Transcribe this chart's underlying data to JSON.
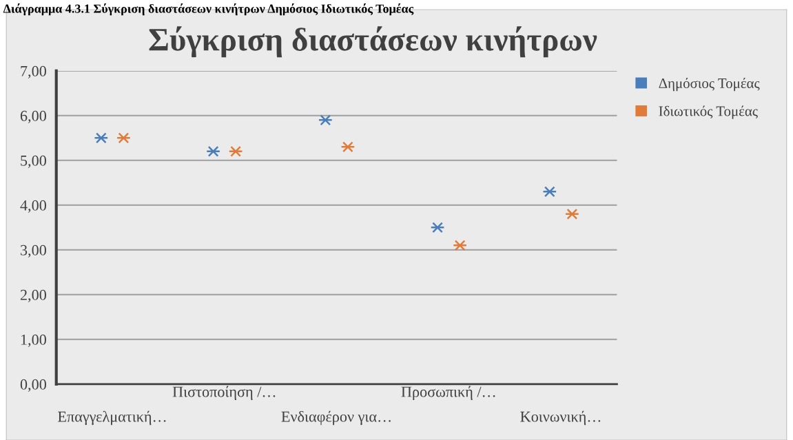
{
  "chart_data": {
    "type": "scatter",
    "title": "Σύγκριση διαστάσεων κινήτρων",
    "annotations": [
      "Διάγραμμα 4.3.1 Σύγκριση διαστάσεων κινήτρων Δημόσιος Ιδιωτικός Τομέας"
    ],
    "categories": [
      "Επαγγελματική…",
      "Πιστοποίηση /…",
      "Ενδιαφέρον για…",
      "Προσωπική /…",
      "Κοινωνική…"
    ],
    "series": [
      {
        "name": "Δημόσιος Τομέας",
        "color": "#4a7ebb",
        "values": [
          5.5,
          5.2,
          5.9,
          3.5,
          4.3
        ]
      },
      {
        "name": "Ιδιωτικός Τομέας",
        "color": "#e07b39",
        "values": [
          5.5,
          5.2,
          5.3,
          3.1,
          3.8
        ]
      }
    ],
    "ylim": [
      0,
      7
    ],
    "yticks": [
      {
        "value": 0,
        "label": "0,00"
      },
      {
        "value": 1,
        "label": "1,00"
      },
      {
        "value": 2,
        "label": "2,00"
      },
      {
        "value": 3,
        "label": "3,00"
      },
      {
        "value": 4,
        "label": "4,00"
      },
      {
        "value": 5,
        "label": "5,00"
      },
      {
        "value": 6,
        "label": "6,00"
      },
      {
        "value": 7,
        "label": "7,00"
      }
    ],
    "grid": "y",
    "legend": "top right",
    "marker": "cross"
  }
}
